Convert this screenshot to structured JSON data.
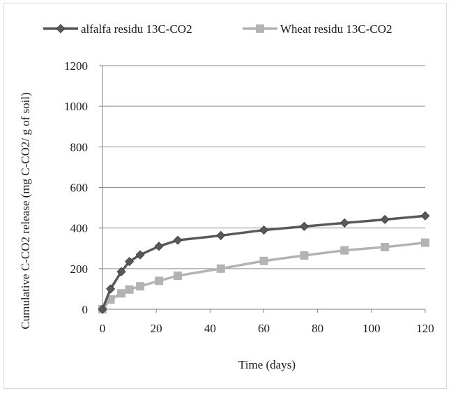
{
  "chart_data": {
    "type": "line",
    "title": "",
    "xlabel": "Time (days)",
    "ylabel": "Cumulative C-CO2 release (mg C-CO2/ g of soil)",
    "xlim": [
      0,
      120
    ],
    "ylim": [
      0,
      1200
    ],
    "x_ticks": [
      0,
      20,
      40,
      60,
      80,
      100,
      120
    ],
    "y_ticks": [
      0,
      200,
      400,
      600,
      800,
      1000,
      1200
    ],
    "grid": "horizontal",
    "legend_position": "top",
    "series": [
      {
        "name": "alfalfa residu 13C-CO2",
        "color": "#595959",
        "marker": "diamond",
        "x": [
          0,
          3,
          7,
          10,
          14,
          21,
          28,
          44,
          60,
          75,
          90,
          105,
          120
        ],
        "y": [
          0,
          100,
          185,
          235,
          268,
          310,
          340,
          363,
          390,
          408,
          425,
          442,
          460
        ]
      },
      {
        "name": "Wheat residu 13C-CO2",
        "color": "#b3b3b3",
        "marker": "square",
        "x": [
          0,
          3,
          7,
          10,
          14,
          21,
          28,
          44,
          60,
          75,
          90,
          105,
          120
        ],
        "y": [
          0,
          48,
          78,
          97,
          113,
          140,
          165,
          200,
          238,
          265,
          290,
          306,
          328
        ]
      }
    ]
  }
}
